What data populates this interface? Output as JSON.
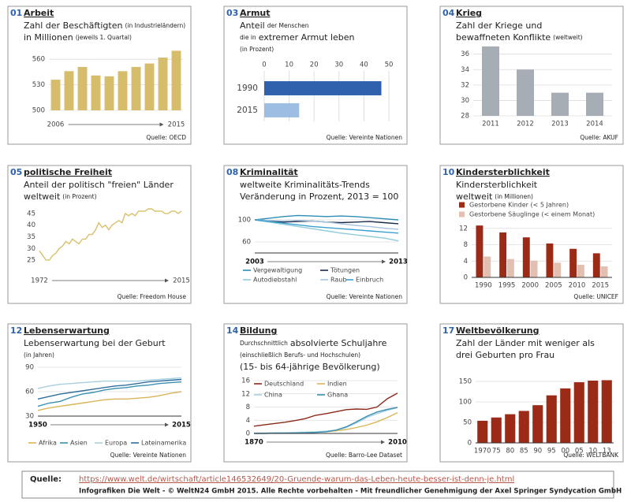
{
  "chart_data": [
    {
      "type": "bar",
      "number": "01",
      "title": "Arbeit",
      "subtitle": [
        [
          {
            "text": "Zahl der Beschäftigten"
          },
          {
            "text": "(in Industrieländern)",
            "small": true
          }
        ],
        [
          {
            "text": "in Millionen"
          },
          {
            "text": "(jeweils 1. Quartal)",
            "small": true
          }
        ]
      ],
      "source": "Quelle: OECD",
      "categories": [
        "2006",
        null,
        null,
        null,
        null,
        null,
        null,
        null,
        null,
        "2015"
      ],
      "values": [
        536,
        546,
        551,
        541,
        540,
        546,
        551,
        555,
        562,
        570
      ],
      "color": "#d6bd6b",
      "ylim": [
        500,
        575
      ],
      "yticks": [
        500,
        530,
        560
      ],
      "grid": true,
      "x_arrow": true
    },
    {
      "type": "hbar",
      "number": "03",
      "title": "Armut",
      "subtitle": [
        [
          {
            "text": "Anteil"
          },
          {
            "text": "der Menschen",
            "small": true
          }
        ],
        [
          {
            "text": "die in",
            "small": true
          },
          {
            "text": "extremer Armut leben"
          }
        ],
        [
          {
            "text": "(in Prozent)",
            "small": true
          }
        ]
      ],
      "source": "Quelle: Vereinte Nationen",
      "categories": [
        "1990",
        "2015"
      ],
      "values": [
        47,
        14
      ],
      "colors": [
        "#2f62ad",
        "#9dbde3"
      ],
      "xlim": [
        0,
        50
      ],
      "xticks": [
        0,
        10,
        20,
        30,
        40,
        50
      ],
      "grid": true
    },
    {
      "type": "bar",
      "number": "04",
      "title": "Krieg",
      "subtitle": [
        [
          {
            "text": "Zahl der Kriege und"
          }
        ],
        [
          {
            "text": "bewaffneten Konflikte"
          },
          {
            "text": "(weltweit)",
            "small": true
          }
        ]
      ],
      "source": "Quelle: AKUF",
      "categories": [
        "2011",
        "2012",
        "2013",
        "2014"
      ],
      "values": [
        37,
        34,
        31,
        31
      ],
      "color": "#a6adb4",
      "ylim": [
        28,
        37.5
      ],
      "yticks": [
        28,
        30,
        32,
        34,
        36
      ],
      "grid": true
    },
    {
      "type": "line",
      "number": "05",
      "title": "politische Freiheit",
      "subtitle": [
        [
          {
            "text": "Anteil der politisch \"freien\" Länder"
          }
        ],
        [
          {
            "text": "weltweit"
          },
          {
            "text": "(in Prozent)",
            "small": true
          }
        ]
      ],
      "source": "Quelle: Freedom House",
      "x": [
        1972,
        1973,
        1974,
        1975,
        1976,
        1977,
        1978,
        1979,
        1980,
        1981,
        1982,
        1983,
        1984,
        1985,
        1986,
        1987,
        1988,
        1989,
        1990,
        1991,
        1992,
        1993,
        1994,
        1995,
        1996,
        1997,
        1998,
        1999,
        2000,
        2001,
        2002,
        2003,
        2004,
        2005,
        2006,
        2007,
        2008,
        2009,
        2010,
        2011,
        2012,
        2013,
        2014,
        2015
      ],
      "values": [
        29,
        27,
        25,
        25,
        27,
        28,
        30,
        31,
        33,
        32,
        34,
        33,
        32,
        34,
        34,
        36,
        36,
        38,
        41,
        39,
        40,
        38,
        40,
        41,
        42,
        41,
        45,
        44,
        45,
        44,
        46,
        46,
        46,
        47,
        47,
        46,
        46,
        46,
        45,
        45,
        46,
        46,
        45,
        46
      ],
      "color": "#d9c06a",
      "xlim": [
        1972,
        2015
      ],
      "xticks": [
        1972,
        2015
      ],
      "ylim": [
        23,
        48
      ],
      "yticks": [
        25,
        30,
        35,
        40,
        45
      ],
      "grid": false,
      "x_arrow": true
    },
    {
      "type": "line",
      "number": "08",
      "title": "Kriminalität",
      "subtitle": [
        [
          {
            "text": "weltweite Kriminalitäts-Trends"
          }
        ],
        [
          {
            "text": "Veränderung in Prozent, 2013 = 100"
          }
        ]
      ],
      "source": "Quelle: Vereinte Nationen",
      "x": [
        2003,
        2004,
        2005,
        2006,
        2007,
        2008,
        2009,
        2010,
        2011,
        2012,
        2013
      ],
      "series": [
        {
          "name": "Vergewaltigung",
          "color": "#2a8fb5",
          "values": [
            100,
            103,
            106,
            108,
            107,
            106,
            107,
            106,
            104,
            102,
            100
          ]
        },
        {
          "name": "Tötungen",
          "color": "#1b2a4a",
          "values": [
            100,
            98,
            96,
            97,
            98,
            96,
            95,
            96,
            97,
            95,
            93
          ]
        },
        {
          "name": "Autodiebstahl",
          "color": "#8fcbd8",
          "values": [
            100,
            96,
            92,
            88,
            84,
            80,
            76,
            73,
            70,
            67,
            62
          ]
        },
        {
          "name": "Raub",
          "color": "#a9c4de",
          "values": [
            100,
            99,
            98,
            99,
            98,
            96,
            93,
            90,
            88,
            85,
            83
          ]
        },
        {
          "name": "Einbruch",
          "color": "#3a9fd0",
          "values": [
            100,
            97,
            94,
            91,
            88,
            86,
            84,
            82,
            80,
            78,
            76
          ]
        }
      ],
      "xlim": [
        2003,
        2013
      ],
      "xticks": [
        2003,
        2013
      ],
      "ylim": [
        40,
        115
      ],
      "yticks": [
        60,
        100
      ],
      "grid": true,
      "x_arrow": true,
      "xtick_bold": true
    },
    {
      "type": "bar",
      "number": "10",
      "title": "Kindersterblichkeit",
      "subtitle": [
        [
          {
            "text": "Kindersterblichkeit"
          }
        ],
        [
          {
            "text": "weltweit"
          },
          {
            "text": "(in Millionen)",
            "small": true
          }
        ]
      ],
      "source": "Quelle: UNICEF",
      "categories": [
        "1990",
        "1995",
        "2000",
        "2005",
        "2010",
        "2015"
      ],
      "series": [
        {
          "name": "Gestorbene Kinder (< 5 Jahren)",
          "color": "#9b2a17",
          "values": [
            12.7,
            11.0,
            9.8,
            8.3,
            7.0,
            5.9
          ]
        },
        {
          "name": "Gestorbene Säuglinge (< einem Monat)",
          "color": "#e2bfb0",
          "values": [
            5.1,
            4.5,
            4.1,
            3.6,
            3.1,
            2.7
          ]
        }
      ],
      "ylim": [
        0,
        13.5
      ],
      "yticks": [
        0,
        4,
        8,
        12
      ],
      "grid": true
    },
    {
      "type": "line",
      "number": "12",
      "title": "Lebenserwartung",
      "subtitle": [
        [
          {
            "text": "Lebenserwartung bei der Geburt"
          }
        ],
        [
          {
            "text": "(in Jahren)",
            "small": true
          }
        ]
      ],
      "source": "Quelle: Vereinte Nationen",
      "x": [
        1950,
        1955,
        1960,
        1965,
        1970,
        1975,
        1980,
        1985,
        1990,
        1995,
        2000,
        2005,
        2010,
        2015
      ],
      "series": [
        {
          "name": "Afrika",
          "color": "#d9b55a",
          "values": [
            37,
            40,
            42,
            44,
            46,
            48,
            50,
            51,
            51,
            52,
            53,
            55,
            58,
            60
          ]
        },
        {
          "name": "Asien",
          "color": "#3a8fb0",
          "values": [
            42,
            46,
            48,
            53,
            57,
            59,
            62,
            64,
            65,
            67,
            68,
            70,
            71,
            72
          ]
        },
        {
          "name": "Europa",
          "color": "#a8cfe0",
          "values": [
            64,
            67,
            69,
            70,
            71,
            72,
            73,
            73,
            73,
            73,
            74,
            75,
            76,
            77
          ]
        },
        {
          "name": "Lateinamerika",
          "color": "#2f6f9a",
          "values": [
            51,
            54,
            57,
            59,
            61,
            63,
            65,
            67,
            68,
            70,
            72,
            73,
            74,
            75
          ]
        }
      ],
      "xlim": [
        1950,
        2015
      ],
      "xticks": [
        1950,
        2015
      ],
      "ylim": [
        30,
        90
      ],
      "yticks": [
        30,
        60,
        90
      ],
      "grid": true,
      "x_arrow": true,
      "xtick_bold": true
    },
    {
      "type": "line",
      "number": "14",
      "title": "Bildung",
      "subtitle": [
        [
          {
            "text": "Durchschnittlich",
            "small": true
          },
          {
            "text": "absolvierte Schuljahre"
          }
        ],
        [
          {
            "text": "(einschließlich Berufs- und Hochschulen)",
            "small": true
          }
        ],
        [
          {
            "text": "(15- bis 64-jährige Bevölkerung)"
          }
        ]
      ],
      "source": "Quelle: Barro-Lee Dataset",
      "x": [
        1870,
        1880,
        1890,
        1900,
        1910,
        1920,
        1930,
        1940,
        1950,
        1960,
        1970,
        1980,
        1990,
        2000,
        2010
      ],
      "series": [
        {
          "name": "Deutschland",
          "color": "#8b2a1a",
          "values": [
            2.2,
            2.6,
            3.0,
            3.4,
            3.9,
            4.5,
            5.5,
            6.0,
            6.6,
            7.2,
            7.4,
            7.3,
            8.0,
            10.5,
            12.2
          ]
        },
        {
          "name": "Indien",
          "color": "#d9b55a",
          "values": [
            0.1,
            0.1,
            0.1,
            0.2,
            0.2,
            0.3,
            0.4,
            0.5,
            0.8,
            1.2,
            1.8,
            2.5,
            3.5,
            4.8,
            6.3
          ]
        },
        {
          "name": "China",
          "color": "#a8cfe0",
          "values": [
            0.1,
            0.1,
            0.2,
            0.2,
            0.3,
            0.4,
            0.5,
            0.7,
            1.0,
            1.8,
            3.2,
            4.8,
            6.0,
            7.0,
            7.8
          ]
        },
        {
          "name": "Ghana",
          "color": "#3a8fb0",
          "values": [
            0.0,
            0.0,
            0.1,
            0.1,
            0.1,
            0.2,
            0.3,
            0.5,
            1.0,
            2.0,
            3.5,
            5.2,
            6.5,
            7.3,
            7.9
          ]
        }
      ],
      "xlim": [
        1870,
        2010
      ],
      "xticks": [
        1870,
        2010
      ],
      "ylim": [
        0,
        16
      ],
      "yticks": [
        0,
        4,
        8,
        12,
        16
      ],
      "grid": true,
      "x_arrow": true,
      "xtick_bold": true
    },
    {
      "type": "bar",
      "number": "17",
      "title": "Weltbevölkerung",
      "subtitle": [
        [
          {
            "text": "Zahl der Länder mit weniger als"
          }
        ],
        [
          {
            "text": "drei Geburten pro Frau"
          }
        ]
      ],
      "source": "Quelle: WELTBANK",
      "categories": [
        "1970",
        "75",
        "80",
        "85",
        "90",
        "95",
        "00",
        "05",
        "10",
        "13"
      ],
      "values": [
        54,
        62,
        70,
        78,
        92,
        116,
        133,
        148,
        152,
        153
      ],
      "color": "#9b2a17",
      "ylim": [
        0,
        160
      ],
      "yticks": [
        0,
        50,
        100,
        150
      ],
      "grid": true
    }
  ],
  "footer": {
    "label": "Quelle:",
    "url": "https://www.welt.de/wirtschaft/article146532649/20-Gruende-warum-das-Leben-heute-besser-ist-denn-je.html",
    "credit": "Infografiken Die Welt - © WeltN24 GmbH 2015. Alle Rechte vorbehalten - Mit freundlicher Genehmigung der Axel Springer Syndycation GmbH"
  }
}
